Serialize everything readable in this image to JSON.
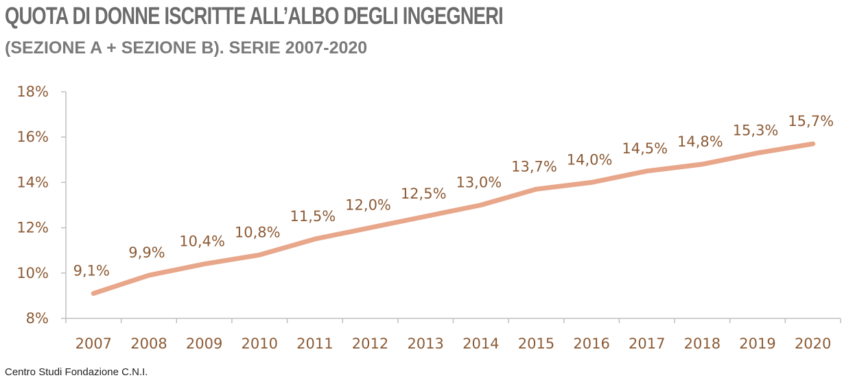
{
  "header": {
    "title": "QUOTA DI DONNE ISCRITTE ALL’ALBO DEGLI INGEGNERI",
    "subtitle": "(SEZIONE A + SEZIONE B). SERIE 2007-2020"
  },
  "footer": {
    "source": "Centro Studi Fondazione C.N.I."
  },
  "chart_data": {
    "type": "line",
    "title": "QUOTA DI DONNE ISCRITTE ALL’ALBO DEGLI INGEGNERI",
    "subtitle": "(SEZIONE A + SEZIONE B). SERIE 2007-2020",
    "categories": [
      "2007",
      "2008",
      "2009",
      "2010",
      "2011",
      "2012",
      "2013",
      "2014",
      "2015",
      "2016",
      "2017",
      "2018",
      "2019",
      "2020"
    ],
    "values": [
      9.1,
      9.9,
      10.4,
      10.8,
      11.5,
      12.0,
      12.5,
      13.0,
      13.7,
      14.0,
      14.5,
      14.8,
      15.3,
      15.7
    ],
    "data_labels": [
      "9,1%",
      "9,9%",
      "10,4%",
      "10,8%",
      "11,5%",
      "12,0%",
      "12,5%",
      "13,0%",
      "13,7%",
      "14,0%",
      "14,5%",
      "14,8%",
      "15,3%",
      "15,7%"
    ],
    "ylim": [
      8,
      18
    ],
    "yticks": [
      8,
      10,
      12,
      14,
      16,
      18
    ],
    "ytick_labels": [
      "8%",
      "10%",
      "12%",
      "14%",
      "16%",
      "18%"
    ],
    "xlabel": "",
    "ylabel": "",
    "grid": false,
    "legend": "none",
    "line_color": "#e8a78a",
    "axis_color": "#bfbfbf",
    "label_color": "#8c5a34"
  }
}
